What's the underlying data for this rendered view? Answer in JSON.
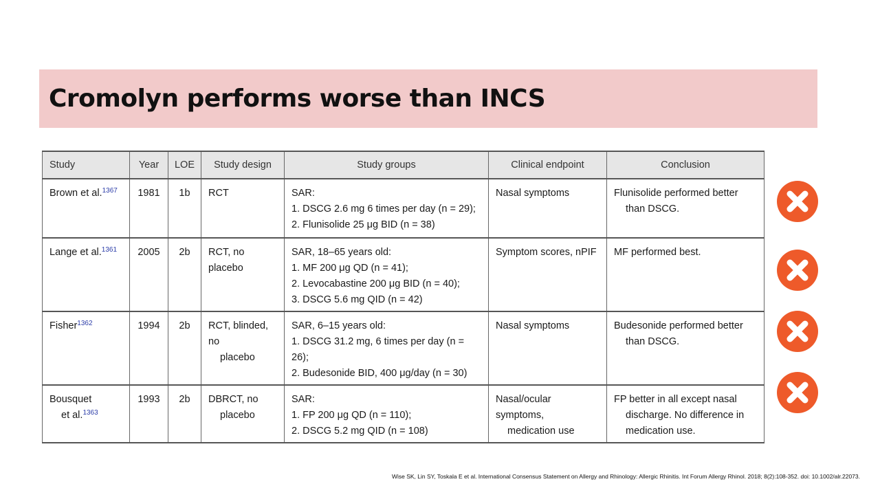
{
  "slide": {
    "title": "Cromolyn performs worse than INCS",
    "citation": "Wise SK, Lin SY, Toskala E et al. International Consensus Statement on Allergy and Rhinology: Allergic Rhinitis. Int Forum Allergy Rhinol. 2018; 8(2):108-352. doi: 10.1002/alr.22073."
  },
  "table": {
    "headers": [
      "Study",
      "Year",
      "LOE",
      "Study design",
      "Study groups",
      "Clinical endpoint",
      "Conclusion"
    ],
    "rows": [
      {
        "study": "Brown et al.",
        "ref": "1367",
        "year": "1981",
        "loe": "1b",
        "design": [
          "RCT"
        ],
        "groups_header": "SAR:",
        "groups": [
          "1.  DSCG 2.6 mg 6 times per day (n = 29);",
          "2.  Flunisolide 25 μg BID (n = 38)"
        ],
        "endpoint": [
          "Nasal symptoms"
        ],
        "conclusion": [
          "Flunisolide performed better",
          "than DSCG."
        ]
      },
      {
        "study": "Lange et al.",
        "ref": "1361",
        "year": "2005",
        "loe": "2b",
        "design": [
          "RCT, no placebo"
        ],
        "groups_header": "SAR, 18–65 years old:",
        "groups": [
          "1.  MF 200 μg QD (n = 41);",
          "2.  Levocabastine 200 μg BID (n = 40);",
          "3.  DSCG 5.6 mg QID (n = 42)"
        ],
        "endpoint": [
          "Symptom scores, nPIF"
        ],
        "conclusion": [
          "MF performed best."
        ]
      },
      {
        "study": "Fisher",
        "ref": "1362",
        "year": "1994",
        "loe": "2b",
        "design": [
          "RCT, blinded, no",
          "placebo"
        ],
        "groups_header": "SAR, 6–15 years old:",
        "groups": [
          "1.  DSCG 31.2 mg, 6 times per day (n = 26);",
          "2.  Budesonide BID, 400 μg/day (n = 30)"
        ],
        "endpoint": [
          "Nasal symptoms"
        ],
        "conclusion": [
          "Budesonide performed better",
          "than DSCG."
        ]
      },
      {
        "study": "Bousquet",
        "study2": "et al.",
        "ref": "1363",
        "year": "1993",
        "loe": "2b",
        "design": [
          "DBRCT, no",
          "placebo"
        ],
        "groups_header": "SAR:",
        "groups": [
          "1.  FP 200 μg QD (n = 110);",
          "2.  DSCG 5.2 mg QID (n = 108)"
        ],
        "endpoint": [
          "Nasal/ocular symptoms,",
          "medication use"
        ],
        "conclusion": [
          "FP better in all except nasal",
          "discharge. No difference in",
          "medication use."
        ]
      }
    ]
  },
  "markers": [
    {
      "icon": "x-circle-icon",
      "color": "#ee5a2a"
    },
    {
      "icon": "x-circle-icon",
      "color": "#ee5a2a"
    },
    {
      "icon": "x-circle-icon",
      "color": "#ee5a2a"
    },
    {
      "icon": "x-circle-icon",
      "color": "#ee5a2a"
    }
  ]
}
